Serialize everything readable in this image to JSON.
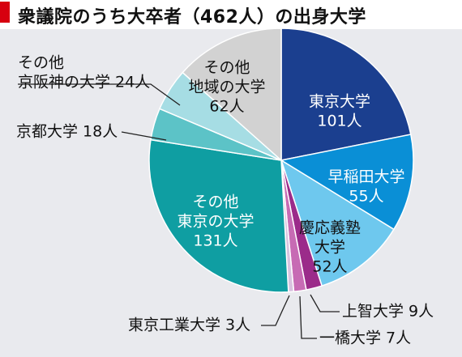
{
  "title": "衆議院のうち大卒者（462人）の出身大学",
  "colors": {
    "title_marker": "#d7000f",
    "panel_bg": "#e9eaee"
  },
  "chart_data": {
    "type": "pie",
    "title": "衆議院のうち大卒者（462人）の出身大学",
    "total": 462,
    "start": "12 o'clock",
    "direction": "clockwise",
    "slices": [
      {
        "label": [
          "東京大学",
          "101人"
        ],
        "value": 101,
        "color": "#1b3f8f",
        "label_color": "#ffffff",
        "label_pos": "inside"
      },
      {
        "label": [
          "早稲田大学",
          "55人"
        ],
        "value": 55,
        "color": "#0a8fd6",
        "label_color": "#ffffff",
        "label_pos": "inside"
      },
      {
        "label": [
          "慶応義塾",
          "大学",
          "52人"
        ],
        "value": 52,
        "color": "#6ec8ee",
        "label_color": "#111111",
        "label_pos": "inside"
      },
      {
        "label": [
          "上智大学  9人"
        ],
        "value": 9,
        "color": "#9b2b8a",
        "label_color": "#111111",
        "label_pos": "outside"
      },
      {
        "label": [
          "一橋大学  7人"
        ],
        "value": 7,
        "color": "#c76bb4",
        "label_color": "#111111",
        "label_pos": "outside"
      },
      {
        "label": [
          "東京工業大学  3人"
        ],
        "value": 3,
        "color": "#d9c3df",
        "label_color": "#111111",
        "label_pos": "outside"
      },
      {
        "label": [
          "その他",
          "東京の大学",
          "131人"
        ],
        "value": 131,
        "color": "#0f9ea2",
        "label_color": "#ffffff",
        "label_pos": "inside"
      },
      {
        "label": [
          "京都大学  18人"
        ],
        "value": 18,
        "color": "#5cc3c7",
        "label_color": "#111111",
        "label_pos": "outside"
      },
      {
        "label": [
          "その他",
          "京阪神の大学  24人"
        ],
        "value": 24,
        "color": "#a6dde4",
        "label_color": "#111111",
        "label_pos": "outside"
      },
      {
        "label": [
          "その他",
          "地域の大学",
          "62人"
        ],
        "value": 62,
        "color": "#d2d2d2",
        "label_color": "#111111",
        "label_pos": "inside"
      }
    ]
  }
}
